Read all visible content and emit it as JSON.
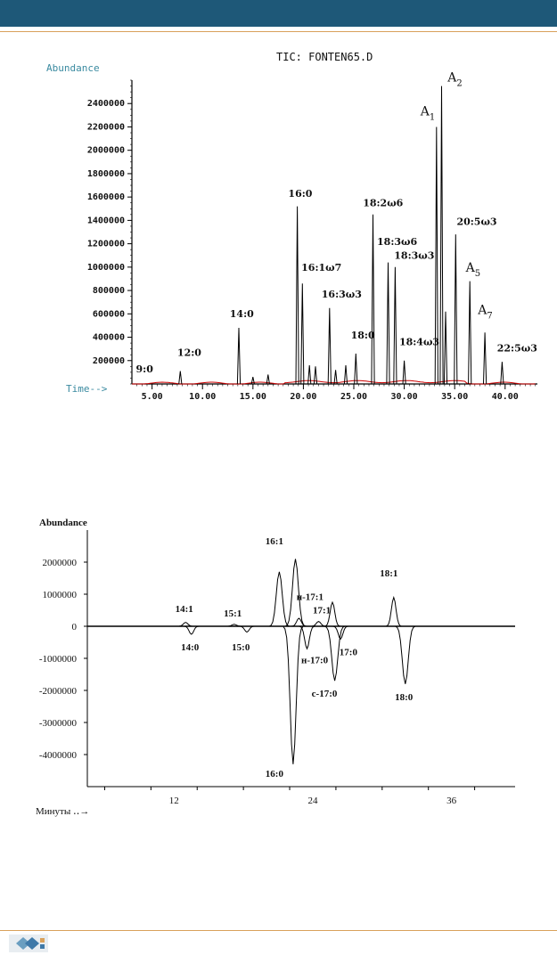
{
  "colors": {
    "header": "#1e5878",
    "rule": "#d9a15b",
    "trace": "#000000",
    "baseline": "#cc0000"
  },
  "chart_data": [
    {
      "type": "line",
      "title": "TIC: FONTEN65.D",
      "ylabel": "Abundance",
      "xlabel": "Time-->",
      "xlim": [
        3.0,
        43.2
      ],
      "ylim": [
        0,
        2600000
      ],
      "x_ticks": [
        "5.00",
        "10.00",
        "15.00",
        "20.00",
        "25.00",
        "30.00",
        "35.00",
        "40.00"
      ],
      "x_tick_values": [
        5,
        10,
        15,
        20,
        25,
        30,
        35,
        40
      ],
      "y_ticks": [
        "200000",
        "400000",
        "600000",
        "800000",
        "1000000",
        "1200000",
        "1400000",
        "1600000",
        "1800000",
        "2000000",
        "2200000",
        "2400000"
      ],
      "y_tick_values": [
        200000,
        400000,
        600000,
        800000,
        1000000,
        1200000,
        1400000,
        1600000,
        1800000,
        2000000,
        2200000,
        2400000
      ],
      "peaks": [
        {
          "x": 7.8,
          "y": 110000
        },
        {
          "x": 13.6,
          "y": 480000
        },
        {
          "x": 15.0,
          "y": 60000
        },
        {
          "x": 16.5,
          "y": 80000
        },
        {
          "x": 19.4,
          "y": 1520000
        },
        {
          "x": 19.9,
          "y": 860000
        },
        {
          "x": 20.6,
          "y": 160000
        },
        {
          "x": 21.2,
          "y": 150000
        },
        {
          "x": 22.6,
          "y": 650000
        },
        {
          "x": 23.2,
          "y": 120000
        },
        {
          "x": 24.2,
          "y": 160000
        },
        {
          "x": 25.2,
          "y": 260000
        },
        {
          "x": 26.9,
          "y": 1450000
        },
        {
          "x": 28.4,
          "y": 1040000
        },
        {
          "x": 29.1,
          "y": 1000000
        },
        {
          "x": 30.0,
          "y": 200000
        },
        {
          "x": 33.2,
          "y": 2200000
        },
        {
          "x": 33.7,
          "y": 2550000
        },
        {
          "x": 34.1,
          "y": 620000
        },
        {
          "x": 35.1,
          "y": 1280000
        },
        {
          "x": 36.5,
          "y": 880000
        },
        {
          "x": 38.0,
          "y": 440000
        },
        {
          "x": 39.7,
          "y": 190000
        }
      ],
      "annotations": [
        {
          "text": "9:0",
          "x": 3.4,
          "y": 100000,
          "kind": "small"
        },
        {
          "text": "12:0",
          "x": 7.5,
          "y": 240000,
          "kind": "small"
        },
        {
          "text": "14:0",
          "x": 12.7,
          "y": 570000,
          "kind": "small"
        },
        {
          "text": "16:0",
          "x": 18.5,
          "y": 1600000,
          "kind": "small"
        },
        {
          "text": "16:1ω7",
          "x": 19.8,
          "y": 970000,
          "kind": "small"
        },
        {
          "text": "16:3ω3",
          "x": 21.8,
          "y": 740000,
          "kind": "small"
        },
        {
          "text": "18:0",
          "x": 24.7,
          "y": 390000,
          "kind": "small"
        },
        {
          "text": "18:2ω6",
          "x": 25.9,
          "y": 1520000,
          "kind": "small"
        },
        {
          "text": "18:3ω6",
          "x": 27.3,
          "y": 1190000,
          "kind": "small"
        },
        {
          "text": "18:3ω3",
          "x": 29.0,
          "y": 1070000,
          "kind": "small"
        },
        {
          "text": "18:4ω3",
          "x": 29.5,
          "y": 330000,
          "kind": "small"
        },
        {
          "text": "20:5ω3",
          "x": 35.2,
          "y": 1360000,
          "kind": "small"
        },
        {
          "text": "22:5ω3",
          "x": 39.2,
          "y": 280000,
          "kind": "small"
        }
      ],
      "a_labels": [
        {
          "text": "A",
          "sub": "1",
          "x": 31.6,
          "y": 2300000
        },
        {
          "text": "A",
          "sub": "2",
          "x": 34.3,
          "y": 2590000
        },
        {
          "text": "A",
          "sub": "5",
          "x": 36.1,
          "y": 960000
        },
        {
          "text": "A",
          "sub": "7",
          "x": 37.3,
          "y": 600000
        }
      ]
    },
    {
      "type": "line",
      "ylabel": "Abundance",
      "xlabel": "Минуты",
      "xlim": [
        4.5,
        41.5
      ],
      "ylim": [
        -5000000,
        3000000
      ],
      "x_ticks": [
        "12",
        "24",
        "36"
      ],
      "x_tick_values": [
        12,
        24,
        36
      ],
      "y_ticks": [
        "2000000",
        "1000000",
        "0",
        "-1000000",
        "-2000000",
        "-3000000",
        "-4000000"
      ],
      "y_tick_values": [
        2000000,
        1000000,
        0,
        -1000000,
        -2000000,
        -3000000,
        -4000000
      ],
      "peaks": [
        {
          "x": 13.0,
          "y": 120000
        },
        {
          "x": 13.5,
          "y": -250000
        },
        {
          "x": 17.2,
          "y": 60000
        },
        {
          "x": 18.3,
          "y": -180000
        },
        {
          "x": 21.1,
          "y": 1700000
        },
        {
          "x": 22.3,
          "y": -4300000
        },
        {
          "x": 22.5,
          "y": 2100000
        },
        {
          "x": 22.8,
          "y": 250000
        },
        {
          "x": 23.5,
          "y": -700000
        },
        {
          "x": 24.5,
          "y": 150000
        },
        {
          "x": 25.7,
          "y": 750000
        },
        {
          "x": 25.9,
          "y": -1700000
        },
        {
          "x": 26.4,
          "y": -400000
        },
        {
          "x": 31.0,
          "y": 900000
        },
        {
          "x": 32.0,
          "y": -1800000
        }
      ],
      "annotations": [
        {
          "text": "14:1",
          "x": 12.1,
          "y": 450000
        },
        {
          "text": "14:0",
          "x": 12.6,
          "y": -750000
        },
        {
          "text": "15:1",
          "x": 16.3,
          "y": 300000
        },
        {
          "text": "15:0",
          "x": 17.0,
          "y": -750000
        },
        {
          "text": "16:1",
          "x": 19.9,
          "y": 2550000
        },
        {
          "text": "16:0",
          "x": 19.9,
          "y": -4700000
        },
        {
          "text": "н-17:1",
          "x": 22.6,
          "y": 820000
        },
        {
          "text": "17:1",
          "x": 24.0,
          "y": 400000
        },
        {
          "text": "н-17:0",
          "x": 23.0,
          "y": -1150000
        },
        {
          "text": "17:0",
          "x": 26.3,
          "y": -900000
        },
        {
          "text": "с-17:0",
          "x": 23.9,
          "y": -2200000
        },
        {
          "text": "18:1",
          "x": 29.8,
          "y": 1550000
        },
        {
          "text": "18:0",
          "x": 31.1,
          "y": -2300000
        }
      ]
    }
  ]
}
